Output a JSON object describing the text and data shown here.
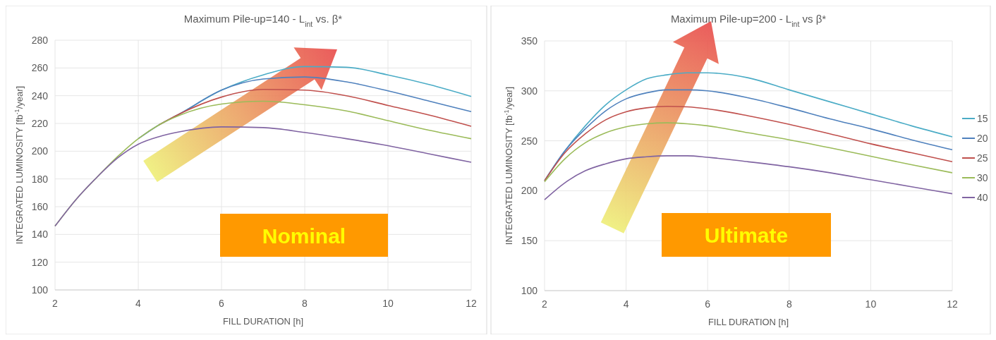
{
  "chart_data": [
    {
      "type": "line",
      "title": "Maximum Pile-up=140 - L$_{int}$ vs. β*",
      "xlabel": "FILL DURATION [h]",
      "ylabel": "INTEGRATED LUMINOSITY [fb$^{-1}$/year]",
      "x": [
        2,
        2.5,
        3,
        3.5,
        4,
        4.5,
        5,
        6,
        7,
        8,
        9,
        10,
        11,
        12
      ],
      "series": [
        {
          "color": "#4bacc6",
          "values": [
            null,
            null,
            null,
            null,
            null,
            219,
            227,
            244,
            255,
            261,
            260.5,
            255,
            248,
            239.5
          ]
        },
        {
          "color": "#4f81bd",
          "values": [
            null,
            null,
            null,
            null,
            209,
            219,
            227,
            244,
            252,
            253.5,
            250,
            243.5,
            236,
            228.5
          ]
        },
        {
          "color": "#c0504d",
          "values": [
            null,
            null,
            null,
            null,
            null,
            219,
            227,
            239,
            244.5,
            244,
            240,
            233,
            226,
            218
          ]
        },
        {
          "color": "#9bbb59",
          "values": [
            146,
            165,
            181,
            196,
            209,
            219,
            226,
            234,
            236,
            233.5,
            229,
            222,
            215,
            209
          ]
        },
        {
          "color": "#8064a2",
          "values": [
            146,
            165,
            181,
            195,
            205,
            210.5,
            214,
            217.5,
            217,
            213.5,
            209,
            204,
            198,
            192
          ]
        }
      ],
      "xlim": [
        2,
        12
      ],
      "xticks": [
        2,
        4,
        6,
        8,
        10,
        12
      ],
      "ylim": [
        100,
        280
      ],
      "yticks": [
        100,
        120,
        140,
        160,
        180,
        200,
        220,
        240,
        260,
        280
      ],
      "grid": true,
      "legend": false,
      "annotations": [
        "Nominal"
      ]
    },
    {
      "type": "line",
      "title": "Maximum Pile-up=200 - L$_{int}$ vs β*",
      "xlabel": "FILL DURATION [h]",
      "ylabel": "INTEGRATED LUMINOSITY [fb$^{-1}$/year]",
      "x": [
        2,
        2.5,
        3,
        3.5,
        4,
        4.5,
        5,
        5.5,
        6,
        7,
        8,
        9,
        10,
        11,
        12
      ],
      "series": [
        {
          "name": "15",
          "color": "#4bacc6",
          "values": [
            210,
            240,
            265,
            286,
            301,
            312,
            316,
            318,
            318,
            313,
            301,
            289,
            277,
            265,
            254
          ]
        },
        {
          "name": "20",
          "color": "#4f81bd",
          "values": [
            210,
            240,
            262,
            280,
            292,
            298,
            301,
            301,
            300,
            293,
            283,
            272,
            262,
            251,
            241
          ]
        },
        {
          "name": "25",
          "color": "#c0504d",
          "values": [
            210,
            238,
            257,
            271,
            279,
            283,
            284.5,
            284,
            282,
            275,
            266.5,
            257,
            247,
            238,
            229
          ]
        },
        {
          "name": "30",
          "color": "#9bbb59",
          "values": [
            209,
            232,
            248,
            258,
            264,
            267,
            268,
            267,
            265,
            258,
            251,
            243,
            234.5,
            226,
            218
          ]
        },
        {
          "name": "40",
          "color": "#8064a2",
          "values": [
            191,
            208,
            220,
            227,
            232,
            234,
            235,
            235,
            233.5,
            229,
            224,
            218,
            211,
            204,
            197
          ]
        }
      ],
      "xlim": [
        2,
        12
      ],
      "xticks": [
        2,
        4,
        6,
        8,
        10,
        12
      ],
      "ylim": [
        100,
        350
      ],
      "yticks": [
        100,
        150,
        200,
        250,
        300,
        350
      ],
      "grid": true,
      "legend": "right",
      "annotations": [
        "Ultimate"
      ]
    }
  ]
}
